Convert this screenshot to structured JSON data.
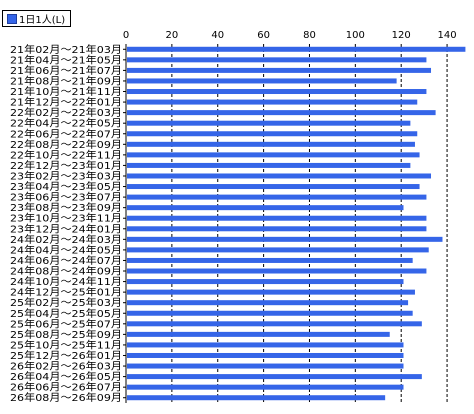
{
  "chart_data": {
    "type": "bar",
    "orientation": "horizontal",
    "legend": [
      {
        "name": "1日1人(L)",
        "color": "#3565e8"
      }
    ],
    "legend_position": "top-left",
    "xlim": [
      0,
      150
    ],
    "x_ticks": [
      0,
      20,
      40,
      60,
      80,
      100,
      120,
      140
    ],
    "grid": true,
    "categories": [
      "21年02月～21年03月",
      "21年04月～21年05月",
      "21年06月～21年07月",
      "21年08月～21年09月",
      "21年10月～21年11月",
      "21年12月～22年01月",
      "22年02月～22年03月",
      "22年04月～22年05月",
      "22年06月～22年07月",
      "22年08月～22年09月",
      "22年10月～22年11月",
      "22年12月～23年01月",
      "23年02月～23年03月",
      "23年04月～23年05月",
      "23年06月～23年07月",
      "23年08月～23年09月",
      "23年10月～23年11月",
      "23年12月～24年01月",
      "24年02月～24年03月",
      "24年04月～24年05月",
      "24年06月～24年07月",
      "24年08月～24年09月",
      "24年10月～24年11月",
      "24年12月～25年01月",
      "25年02月～25年03月",
      "25年04月～25年05月",
      "25年06月～25年07月",
      "25年08月～25年09月",
      "25年10月～25年11月",
      "25年12月～26年01月",
      "26年02月～26年03月",
      "26年04月～26年05月",
      "26年06月～26年07月",
      "26年08月～26年09月"
    ],
    "series": [
      {
        "name": "1日1人(L)",
        "values": [
          148,
          131,
          133,
          118,
          131,
          127,
          135,
          124,
          127,
          126,
          128,
          124,
          133,
          128,
          131,
          121,
          131,
          131,
          138,
          132,
          125,
          131,
          121,
          126,
          123,
          125,
          129,
          115,
          121,
          121,
          121,
          129,
          121,
          113
        ]
      }
    ]
  }
}
